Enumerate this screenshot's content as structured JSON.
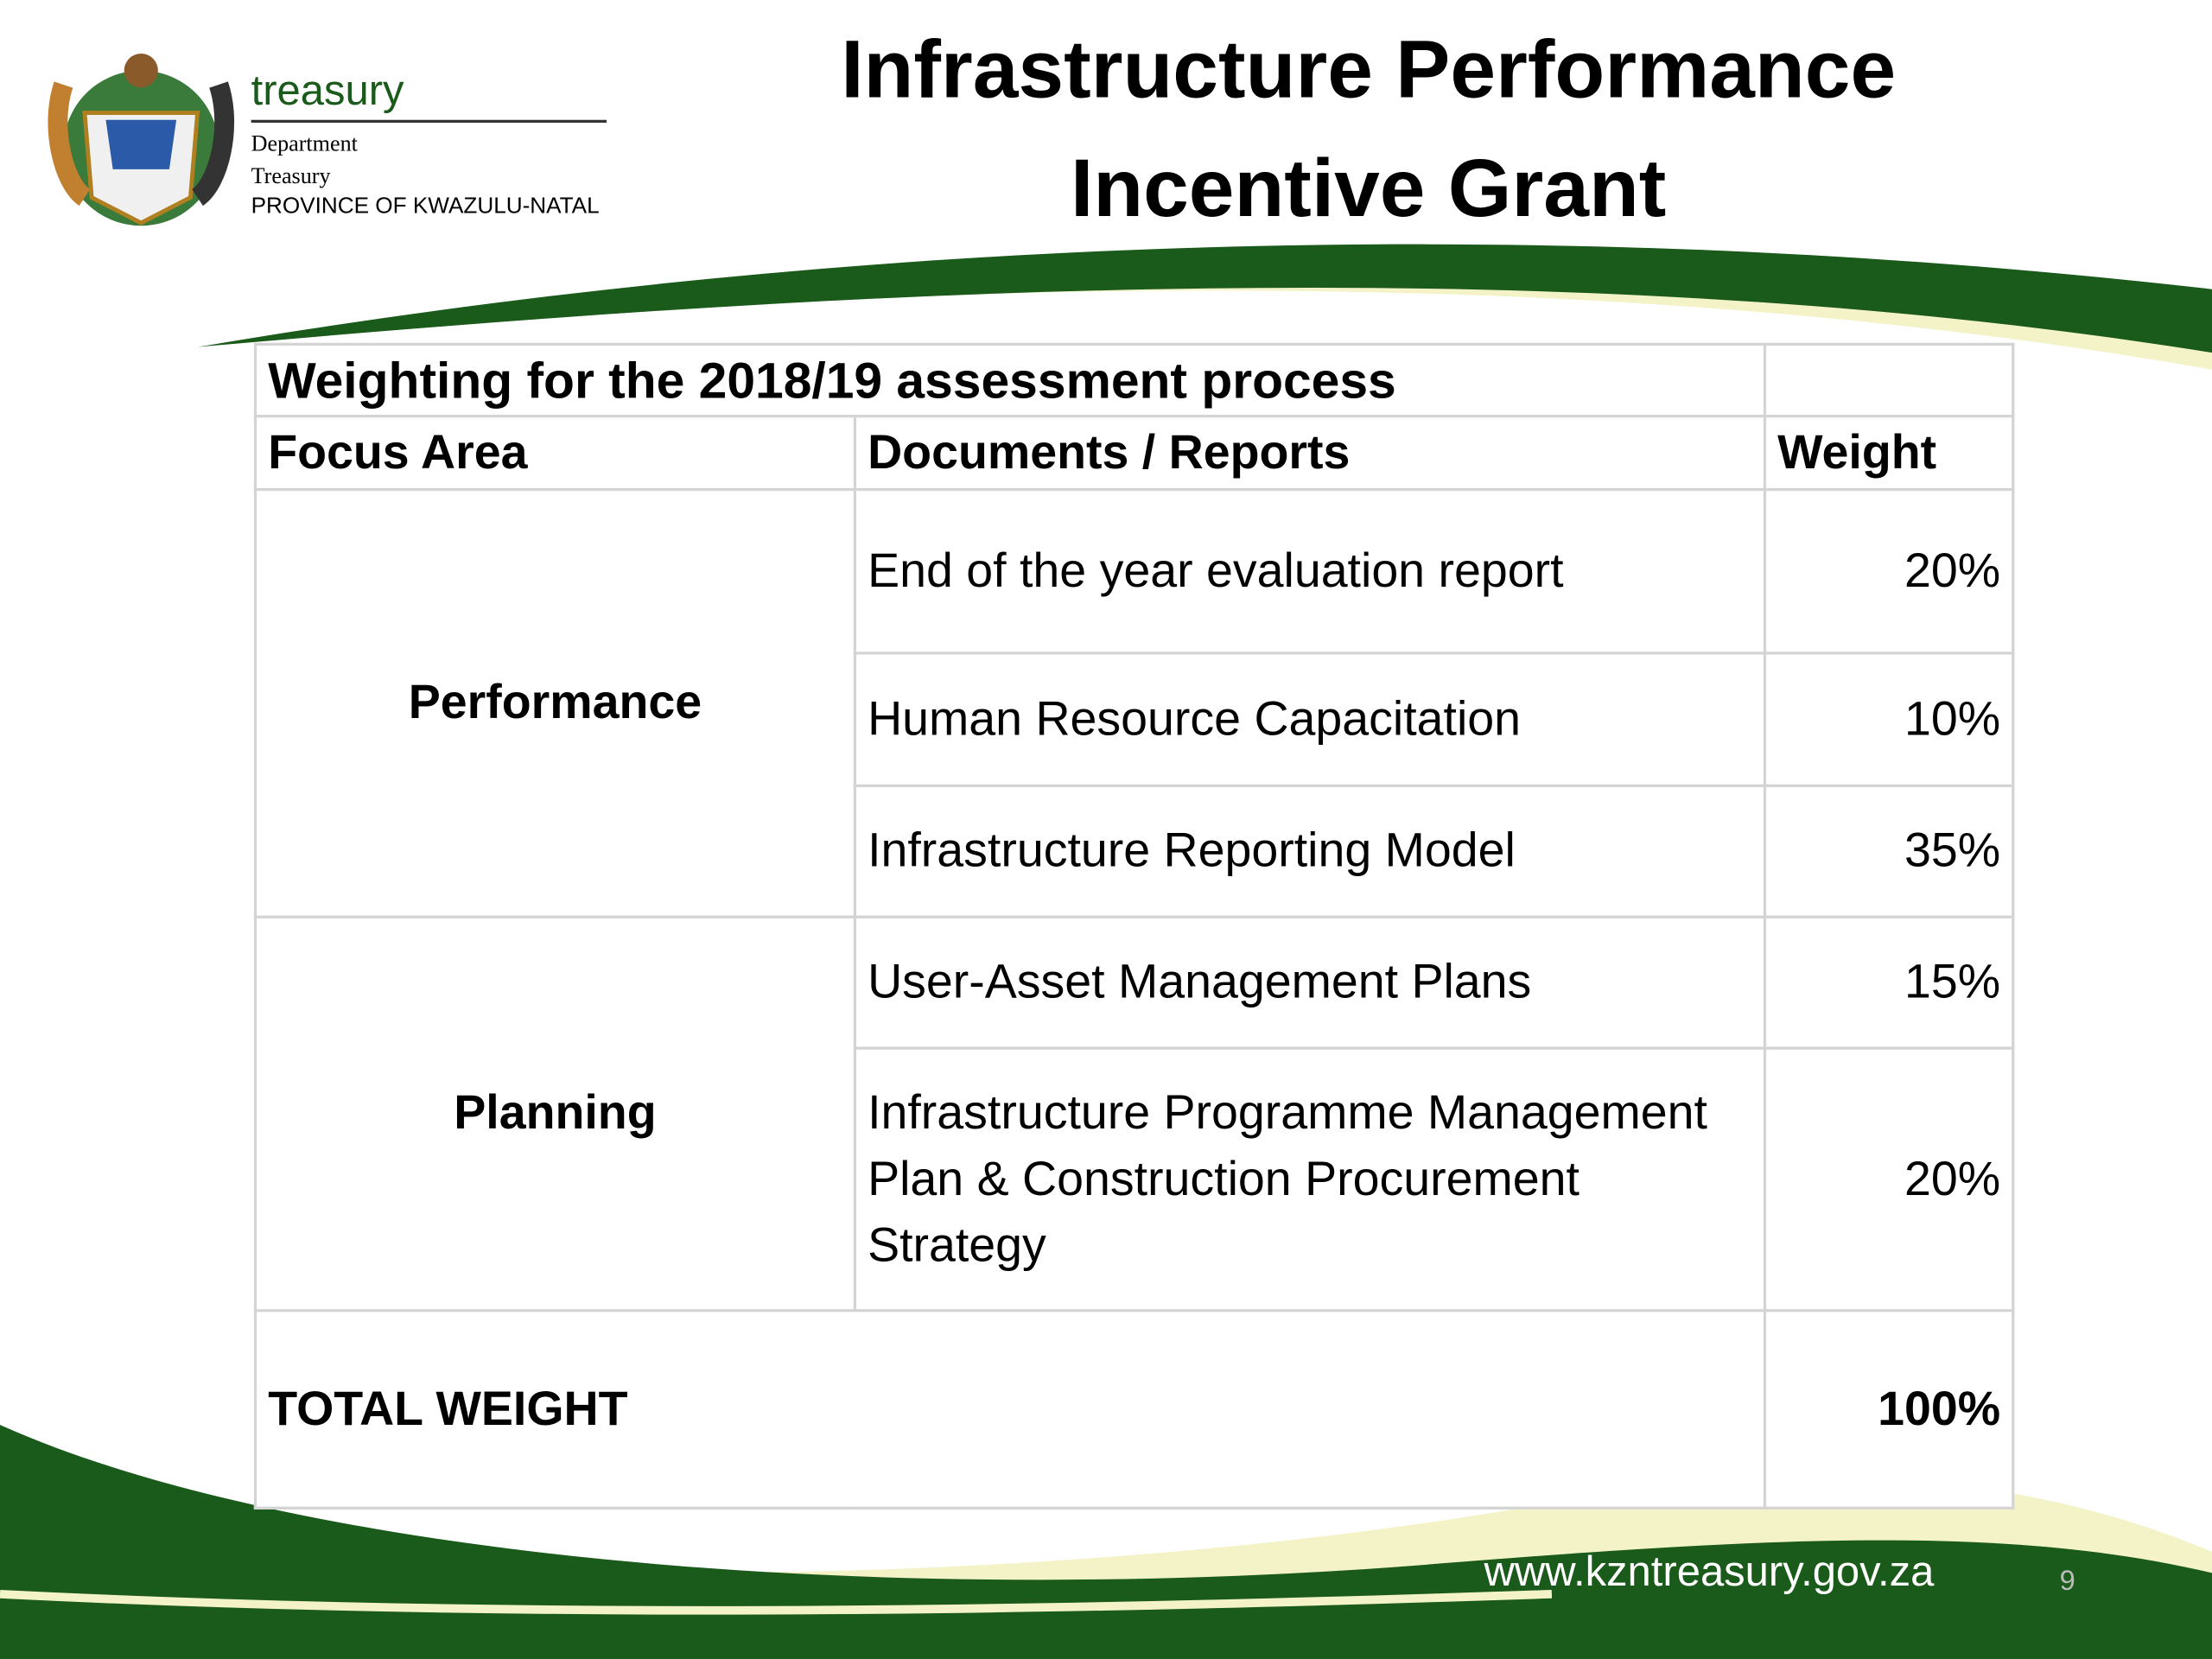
{
  "logo": {
    "name": "treasury",
    "lines": [
      "Department",
      "Treasury",
      "PROVINCE OF KWAZULU-NATAL"
    ]
  },
  "header": {
    "title": "Infrastructure Performance Incentive Grant"
  },
  "table": {
    "title": "Weighting for the 2018/19 assessment process",
    "columns": [
      "Focus Area",
      "Documents / Reports",
      "Weight"
    ],
    "groups": [
      {
        "focus": "Performance",
        "rows": [
          {
            "document": "End of the year evaluation report",
            "weight": "20%"
          },
          {
            "document": "Human Resource Capacitation",
            "weight": "10%"
          },
          {
            "document": "Infrastructure Reporting Model",
            "weight": "35%"
          }
        ]
      },
      {
        "focus": "Planning",
        "rows": [
          {
            "document": "User-Asset Management Plans",
            "weight": "15%"
          },
          {
            "document": "Infrastructure Programme Management Plan & Construction Procurement Strategy",
            "weight": "20%"
          }
        ]
      }
    ],
    "total": {
      "label": "TOTAL WEIGHT",
      "weight": "100%"
    }
  },
  "footer": {
    "url": "www.kzntreasury.gov.za",
    "page": "9"
  }
}
